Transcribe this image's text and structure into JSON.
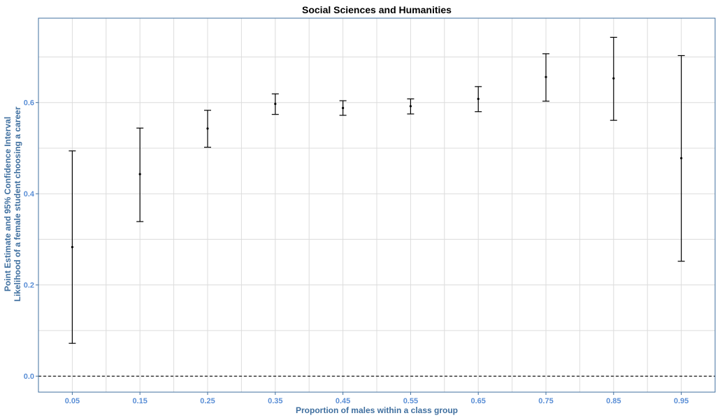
{
  "chart_data": {
    "type": "errorbar",
    "title": "Social Sciences and Humanities",
    "xlabel": "Proportion of males within a class group",
    "ylabel_lines": [
      "Point Estimate and 95% Confidence Interval",
      "Likelihood of a female student choosing a career"
    ],
    "x_ticks": [
      "0.05",
      "0.15",
      "0.25",
      "0.35",
      "0.45",
      "0.55",
      "0.65",
      "0.75",
      "0.85",
      "0.95"
    ],
    "y_ticks": [
      "0.0",
      "0.2",
      "0.4",
      "0.6"
    ],
    "xlim": [
      0.0,
      1.0
    ],
    "ylim": [
      -0.035,
      0.785
    ],
    "x_minor_grid": [
      0.1,
      0.2,
      0.3,
      0.4,
      0.5,
      0.6,
      0.7,
      0.8,
      0.9
    ],
    "y_minor_grid": [
      0.1,
      0.3,
      0.5,
      0.7
    ],
    "reference_line": {
      "y": 0.0,
      "style": "dashed"
    },
    "points": [
      {
        "x": 0.05,
        "estimate": 0.283,
        "lower": 0.072,
        "upper": 0.494
      },
      {
        "x": 0.15,
        "estimate": 0.443,
        "lower": 0.339,
        "upper": 0.544
      },
      {
        "x": 0.25,
        "estimate": 0.543,
        "lower": 0.502,
        "upper": 0.583
      },
      {
        "x": 0.35,
        "estimate": 0.597,
        "lower": 0.574,
        "upper": 0.619
      },
      {
        "x": 0.45,
        "estimate": 0.588,
        "lower": 0.572,
        "upper": 0.604
      },
      {
        "x": 0.55,
        "estimate": 0.592,
        "lower": 0.575,
        "upper": 0.608
      },
      {
        "x": 0.65,
        "estimate": 0.608,
        "lower": 0.58,
        "upper": 0.635
      },
      {
        "x": 0.75,
        "estimate": 0.656,
        "lower": 0.603,
        "upper": 0.707
      },
      {
        "x": 0.85,
        "estimate": 0.653,
        "lower": 0.561,
        "upper": 0.743
      },
      {
        "x": 0.95,
        "estimate": 0.478,
        "lower": 0.252,
        "upper": 0.703
      }
    ],
    "grid": true,
    "colors": {
      "tick_label": "#5b8fd6",
      "axis_title": "#3f6f9f",
      "panel_border": "#3f6f9f",
      "grid": "#dcdcdc",
      "errorbar": "#000000"
    }
  }
}
